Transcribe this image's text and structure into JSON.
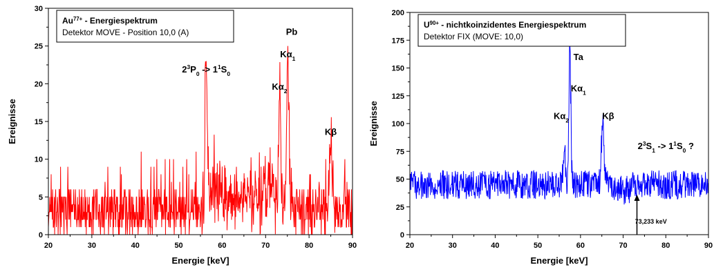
{
  "chart_data": [
    {
      "type": "line",
      "legend_placement": "top-left (boxed)",
      "title_parts": [
        "Au",
        "77+",
        " - Energiespektrum"
      ],
      "subtitle": "Detektor MOVE - Position 10,0 (A)",
      "xlabel": "Energie [keV]",
      "ylabel": "Ereignisse",
      "xlim": [
        20,
        90
      ],
      "ylim": [
        0,
        30
      ],
      "xticks": [
        20,
        30,
        40,
        50,
        60,
        70,
        80,
        90
      ],
      "yticks": [
        0,
        5,
        10,
        15,
        20,
        25,
        30
      ],
      "color": "#ff0000",
      "annotations": [
        {
          "parts": [
            "2",
            "3",
            "P",
            "0",
            " -> 1",
            "1",
            "S",
            "0"
          ],
          "x": 56.3,
          "y": 21.5
        },
        {
          "parts": [
            "Kα",
            "2"
          ],
          "x": 73.2,
          "y": 19.2
        },
        {
          "parts": [
            "Kα",
            "1"
          ],
          "x": 75.1,
          "y": 23.5
        },
        {
          "parts": [
            "Pb"
          ],
          "x": 76.0,
          "y": 26.5
        },
        {
          "parts": [
            "Kβ"
          ],
          "x": 85.0,
          "y": 13.2
        }
      ],
      "series": [
        {
          "peaks": [
            {
              "x": 56.3,
              "y": 23,
              "width": 0.4
            },
            {
              "x": 73.2,
              "y": 18,
              "width": 0.35
            },
            {
              "x": 75.1,
              "y": 25,
              "width": 0.4
            },
            {
              "x": 85.0,
              "y": 12,
              "width": 0.6
            }
          ],
          "baseline_range": [
            0,
            6
          ]
        }
      ]
    },
    {
      "type": "line",
      "legend_placement": "top-left (boxed)",
      "title_parts": [
        "U",
        "90+",
        " - nichtkoinzidentes Energiespektrum"
      ],
      "subtitle": "Detektor FIX (MOVE: 10,0)",
      "xlabel": "Energie [keV]",
      "ylabel": "Ereignisse",
      "xlim": [
        20,
        90
      ],
      "ylim": [
        0,
        200
      ],
      "xticks": [
        20,
        30,
        40,
        50,
        60,
        70,
        80,
        90
      ],
      "yticks": [
        0,
        25,
        50,
        75,
        100,
        125,
        150,
        175,
        200
      ],
      "color": "#0000ff",
      "annotations": [
        {
          "parts": [
            "Ta"
          ],
          "x": 59.5,
          "y": 157
        },
        {
          "parts": [
            "Kα",
            "1"
          ],
          "x": 59.5,
          "y": 129
        },
        {
          "parts": [
            "Kα",
            "2"
          ],
          "x": 55.5,
          "y": 104
        },
        {
          "parts": [
            "Kβ"
          ],
          "x": 66.5,
          "y": 104
        },
        {
          "parts": [
            "2",
            "3",
            "S",
            "1",
            " -> 1",
            "1",
            "S",
            "0",
            " ?"
          ],
          "x": 80.0,
          "y": 77
        },
        {
          "parts": [
            "73,233 keV"
          ],
          "x": 76.5,
          "y": 10
        }
      ],
      "marker": {
        "x": 73.233,
        "y_from": 0,
        "y_to": 36
      },
      "series": [
        {
          "baseline": 45,
          "peaks": [
            {
              "x": 56.2,
              "y": 75,
              "width": 0.5
            },
            {
              "x": 57.5,
              "y": 170,
              "width": 0.4
            },
            {
              "x": 65.2,
              "y": 100,
              "width": 0.55
            }
          ]
        }
      ]
    }
  ]
}
